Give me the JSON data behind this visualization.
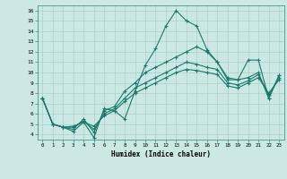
{
  "xlabel": "Humidex (Indice chaleur)",
  "xlim": [
    -0.5,
    23.5
  ],
  "ylim": [
    3.5,
    16.5
  ],
  "xticks": [
    0,
    1,
    2,
    3,
    4,
    5,
    6,
    7,
    8,
    9,
    10,
    11,
    12,
    13,
    14,
    15,
    16,
    17,
    18,
    19,
    20,
    21,
    22,
    23
  ],
  "yticks": [
    4,
    5,
    6,
    7,
    8,
    9,
    10,
    11,
    12,
    13,
    14,
    15,
    16
  ],
  "bg_color": "#cce8e4",
  "grid_color": "#aad0cb",
  "line_color": "#1a7a6e",
  "lines": [
    [
      7.5,
      5.0,
      4.7,
      4.3,
      5.2,
      3.7,
      6.5,
      6.3,
      5.5,
      8.2,
      10.7,
      12.3,
      14.5,
      16.0,
      15.0,
      14.5,
      12.2,
      11.0,
      9.3,
      9.3,
      11.2,
      11.2,
      7.5,
      9.7
    ],
    [
      7.5,
      5.0,
      4.7,
      4.5,
      5.5,
      4.2,
      6.3,
      6.7,
      8.2,
      9.0,
      10.0,
      10.5,
      11.0,
      11.5,
      12.0,
      12.5,
      12.0,
      11.0,
      9.5,
      9.3,
      9.5,
      10.0,
      7.5,
      9.7
    ],
    [
      7.5,
      5.0,
      4.7,
      4.7,
      5.3,
      4.5,
      6.0,
      6.5,
      7.5,
      8.5,
      9.0,
      9.5,
      10.0,
      10.5,
      11.0,
      10.8,
      10.5,
      10.3,
      9.0,
      8.8,
      9.2,
      9.8,
      7.8,
      9.5
    ],
    [
      7.5,
      5.0,
      4.7,
      4.8,
      5.2,
      4.8,
      5.8,
      6.3,
      7.2,
      8.0,
      8.5,
      9.0,
      9.5,
      10.0,
      10.3,
      10.2,
      10.0,
      9.8,
      8.7,
      8.5,
      9.0,
      9.5,
      8.0,
      9.3
    ]
  ]
}
